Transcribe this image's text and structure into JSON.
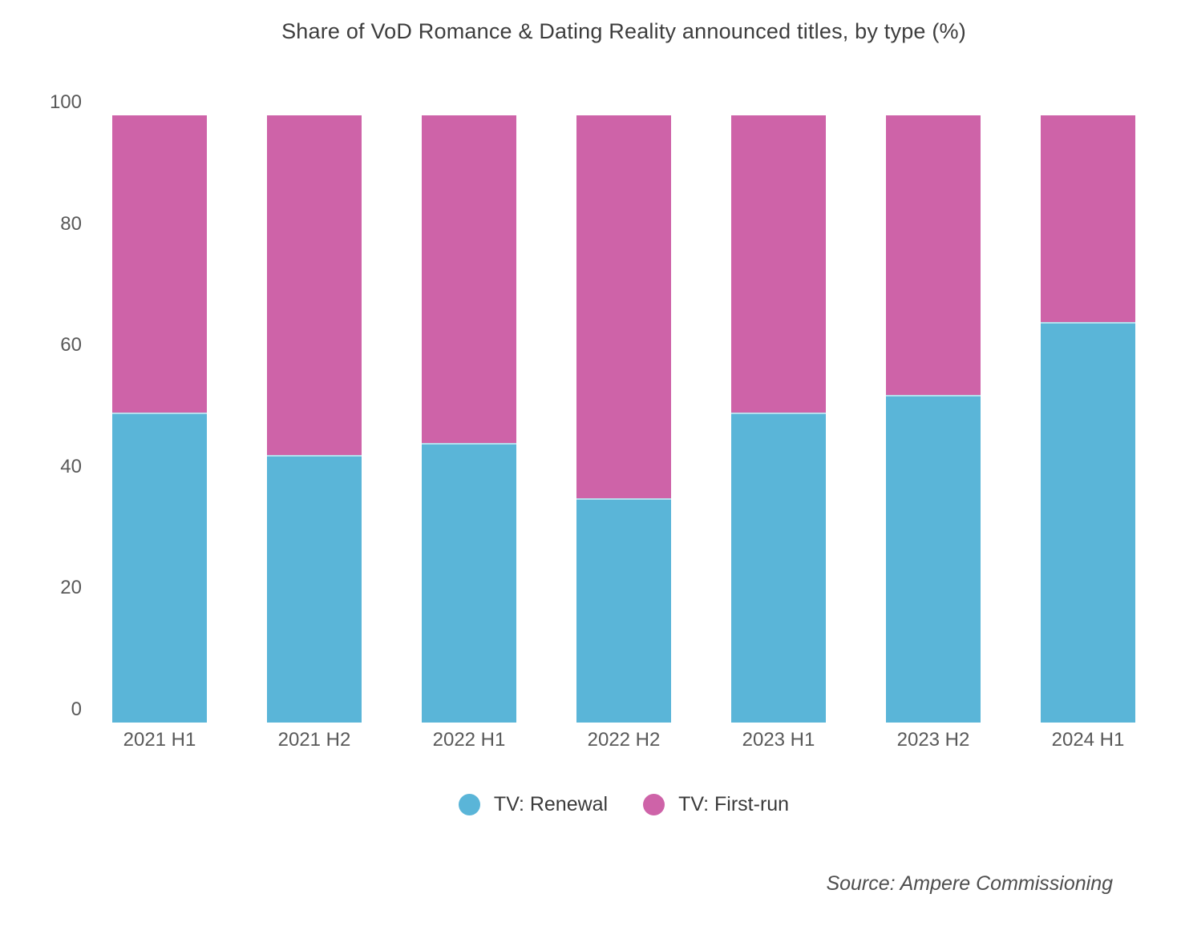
{
  "title": "Share of VoD Romance & Dating Reality announced titles, by type (%)",
  "source_note": "Source: Ampere Commissioning",
  "colors": {
    "background": "#ffffff",
    "title_text": "#3d3d3d",
    "axis_text": "#595959",
    "legend_text": "#3a3a3a",
    "source_text": "#4e4e4e",
    "renewal_blue": "#5AB5D8",
    "first_run_pink": "#CE63A8"
  },
  "chart_data": {
    "type": "bar",
    "variant": "stacked-percent-column",
    "title": "Share of VoD Romance & Dating Reality announced titles, by type (%)",
    "categories": [
      "2021 H1",
      "2021 H2",
      "2022 H1",
      "2022 H2",
      "2023 H1",
      "2023 H2",
      "2024 H1"
    ],
    "series": [
      {
        "name": "TV: Renewal",
        "color": "#5AB5D8",
        "stack_order": "bottom",
        "values": [
          51,
          44,
          46,
          37,
          51,
          54,
          66
        ]
      },
      {
        "name": "TV: First-run",
        "color": "#CE63A8",
        "stack_order": "top",
        "values": [
          49,
          56,
          54,
          63,
          49,
          46,
          34
        ]
      }
    ],
    "xlabel": "",
    "ylabel": "",
    "ylim": [
      0,
      100
    ],
    "y_ticks": [
      0,
      20,
      40,
      60,
      80,
      100
    ],
    "grid": false,
    "legend_position": "bottom"
  },
  "legend": {
    "items": [
      {
        "label": "TV: Renewal",
        "color": "#5AB5D8"
      },
      {
        "label": "TV: First-run",
        "color": "#CE63A8"
      }
    ]
  }
}
